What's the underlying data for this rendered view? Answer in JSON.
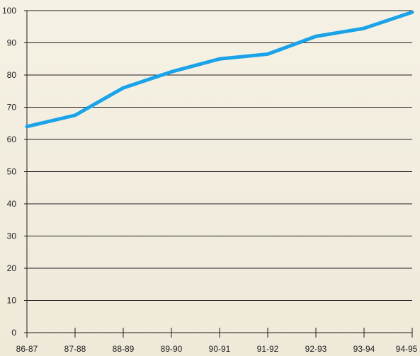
{
  "chart_data": {
    "type": "line",
    "title": "",
    "xlabel": "",
    "ylabel": "",
    "categories": [
      "86-87",
      "87-88",
      "88-89",
      "89-90",
      "90-91",
      "91-92",
      "92-93",
      "93-94",
      "94-95"
    ],
    "series": [
      {
        "values": [
          64,
          67.5,
          76,
          81,
          85,
          86.5,
          92,
          94.5,
          99.5
        ],
        "color": "#1aa3e8"
      }
    ],
    "ylim": [
      0,
      100
    ],
    "yticks": [
      0,
      10,
      20,
      30,
      40,
      50,
      60,
      70,
      80,
      90,
      100
    ],
    "ytick_labels": [
      "0",
      "10",
      "20",
      "30",
      "40",
      "50",
      "60",
      "70",
      "80",
      "90",
      "100"
    ],
    "grid": true,
    "legend": "none"
  }
}
